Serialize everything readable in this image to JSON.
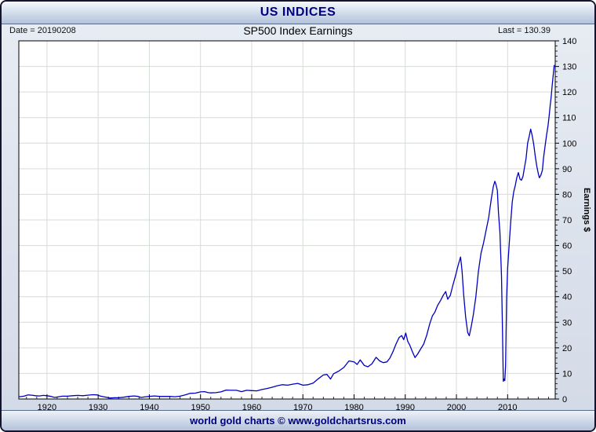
{
  "window": {
    "title": "US INDICES"
  },
  "header": {
    "date_label": "Date = 20190208",
    "chart_title": "SP500 Index Earnings",
    "last_label": "Last = 130.39"
  },
  "footer": {
    "credit": "world gold charts © www.goldchartsrus.com"
  },
  "colors": {
    "series_line": "#0000bf",
    "grid": "#d6dcd6",
    "plot_border": "#000000",
    "title_text": "#000080",
    "tick_text": "#000000"
  },
  "chart_data": {
    "type": "line",
    "title": "SP500 Index Earnings",
    "date": "20190208",
    "last_value": 130.39,
    "xlabel": "",
    "ylabel": "Earnings $",
    "xlim": [
      1914.5,
      2019.3
    ],
    "ylim": [
      0,
      140
    ],
    "x_ticks": [
      1920,
      1930,
      1940,
      1950,
      1960,
      1970,
      1980,
      1990,
      2000,
      2010
    ],
    "y_ticks": [
      0,
      10,
      20,
      30,
      40,
      50,
      60,
      70,
      80,
      90,
      100,
      110,
      120,
      130,
      140
    ],
    "grid": true,
    "legend_position": "none",
    "series": [
      {
        "name": "SP500 Index Earnings",
        "points": [
          [
            1914.6,
            0.9
          ],
          [
            1915.5,
            1.1
          ],
          [
            1916.3,
            1.6
          ],
          [
            1917,
            1.5
          ],
          [
            1917.8,
            1.3
          ],
          [
            1918.5,
            1.2
          ],
          [
            1919.3,
            1.4
          ],
          [
            1920,
            1.3
          ],
          [
            1920.8,
            1.0
          ],
          [
            1921.5,
            0.6
          ],
          [
            1922.3,
            0.9
          ],
          [
            1923,
            1.1
          ],
          [
            1924,
            1.1
          ],
          [
            1925,
            1.3
          ],
          [
            1926,
            1.4
          ],
          [
            1927,
            1.3
          ],
          [
            1928,
            1.5
          ],
          [
            1929,
            1.7
          ],
          [
            1929.8,
            1.6
          ],
          [
            1930.5,
            1.1
          ],
          [
            1931.3,
            0.8
          ],
          [
            1932.3,
            0.4
          ],
          [
            1933.2,
            0.5
          ],
          [
            1934,
            0.5
          ],
          [
            1935,
            0.7
          ],
          [
            1936,
            1.0
          ],
          [
            1937,
            1.2
          ],
          [
            1937.8,
            1.0
          ],
          [
            1938.4,
            0.6
          ],
          [
            1939,
            0.8
          ],
          [
            1940,
            1.0
          ],
          [
            1941,
            1.2
          ],
          [
            1942,
            1.0
          ],
          [
            1943,
            1.0
          ],
          [
            1944,
            1.0
          ],
          [
            1945,
            0.9
          ],
          [
            1946,
            1.1
          ],
          [
            1947,
            1.6
          ],
          [
            1948,
            2.2
          ],
          [
            1949,
            2.3
          ],
          [
            1950,
            2.8
          ],
          [
            1950.8,
            2.9
          ],
          [
            1951.5,
            2.5
          ],
          [
            1952,
            2.4
          ],
          [
            1953,
            2.5
          ],
          [
            1954,
            2.8
          ],
          [
            1955,
            3.5
          ],
          [
            1956,
            3.4
          ],
          [
            1957,
            3.4
          ],
          [
            1958,
            2.9
          ],
          [
            1959,
            3.4
          ],
          [
            1960,
            3.3
          ],
          [
            1961,
            3.2
          ],
          [
            1962,
            3.7
          ],
          [
            1963,
            4.1
          ],
          [
            1964,
            4.6
          ],
          [
            1965,
            5.2
          ],
          [
            1966,
            5.6
          ],
          [
            1967,
            5.4
          ],
          [
            1968,
            5.8
          ],
          [
            1969,
            6.1
          ],
          [
            1970,
            5.4
          ],
          [
            1971,
            5.6
          ],
          [
            1972,
            6.2
          ],
          [
            1973,
            7.9
          ],
          [
            1974,
            9.4
          ],
          [
            1974.7,
            9.6
          ],
          [
            1975.4,
            7.8
          ],
          [
            1976,
            9.9
          ],
          [
            1977,
            10.9
          ],
          [
            1978,
            12.3
          ],
          [
            1979,
            14.9
          ],
          [
            1980,
            14.5
          ],
          [
            1980.6,
            13.5
          ],
          [
            1981.2,
            15.3
          ],
          [
            1982,
            13.1
          ],
          [
            1982.7,
            12.6
          ],
          [
            1983.5,
            13.8
          ],
          [
            1984.3,
            16.3
          ],
          [
            1985,
            14.9
          ],
          [
            1985.7,
            14.2
          ],
          [
            1986.4,
            14.5
          ],
          [
            1987,
            16.0
          ],
          [
            1987.6,
            18.5
          ],
          [
            1988.2,
            21.5
          ],
          [
            1988.8,
            24.0
          ],
          [
            1989.3,
            24.8
          ],
          [
            1989.7,
            23.2
          ],
          [
            1990.1,
            25.8
          ],
          [
            1990.5,
            22.5
          ],
          [
            1990.9,
            21.0
          ],
          [
            1991.4,
            18.5
          ],
          [
            1991.9,
            16.2
          ],
          [
            1992.4,
            17.5
          ],
          [
            1993,
            19.5
          ],
          [
            1993.6,
            21.5
          ],
          [
            1994.2,
            25.0
          ],
          [
            1994.8,
            29.5
          ],
          [
            1995.3,
            32.5
          ],
          [
            1995.8,
            34.0
          ],
          [
            1996.3,
            36.5
          ],
          [
            1996.9,
            38.5
          ],
          [
            1997.4,
            40.5
          ],
          [
            1997.9,
            42.0
          ],
          [
            1998.3,
            39.0
          ],
          [
            1998.8,
            40.5
          ],
          [
            1999.3,
            44.5
          ],
          [
            1999.8,
            48.0
          ],
          [
            2000.3,
            52.0
          ],
          [
            2000.8,
            55.5
          ],
          [
            2001.1,
            50.0
          ],
          [
            2001.4,
            41.0
          ],
          [
            2001.8,
            32.0
          ],
          [
            2002.2,
            26.0
          ],
          [
            2002.5,
            24.7
          ],
          [
            2002.9,
            28.5
          ],
          [
            2003.3,
            33.0
          ],
          [
            2003.8,
            40.0
          ],
          [
            2004.3,
            50.0
          ],
          [
            2004.8,
            57.0
          ],
          [
            2005.3,
            61.0
          ],
          [
            2005.8,
            66.0
          ],
          [
            2006.3,
            71.0
          ],
          [
            2006.8,
            78.0
          ],
          [
            2007.2,
            83.0
          ],
          [
            2007.5,
            85.1
          ],
          [
            2007.7,
            84.0
          ],
          [
            2008,
            81.5
          ],
          [
            2008.2,
            73.0
          ],
          [
            2008.5,
            65.0
          ],
          [
            2008.8,
            48.0
          ],
          [
            2009.0,
            26.0
          ],
          [
            2009.15,
            6.9
          ],
          [
            2009.3,
            7.8
          ],
          [
            2009.45,
            7.2
          ],
          [
            2009.6,
            13.0
          ],
          [
            2009.8,
            39.0
          ],
          [
            2010,
            51.0
          ],
          [
            2010.3,
            60.5
          ],
          [
            2010.6,
            69.0
          ],
          [
            2010.9,
            77.0
          ],
          [
            2011.2,
            81.0
          ],
          [
            2011.5,
            83.5
          ],
          [
            2011.8,
            86.5
          ],
          [
            2012.1,
            88.5
          ],
          [
            2012.4,
            86.0
          ],
          [
            2012.7,
            85.5
          ],
          [
            2013,
            87.0
          ],
          [
            2013.3,
            90.5
          ],
          [
            2013.6,
            94.0
          ],
          [
            2013.9,
            100.0
          ],
          [
            2014.2,
            102.5
          ],
          [
            2014.5,
            105.5
          ],
          [
            2014.8,
            103.0
          ],
          [
            2015.1,
            99.5
          ],
          [
            2015.4,
            95.0
          ],
          [
            2015.7,
            91.0
          ],
          [
            2016,
            88.0
          ],
          [
            2016.2,
            86.5
          ],
          [
            2016.5,
            87.5
          ],
          [
            2016.8,
            89.5
          ],
          [
            2017,
            94.0
          ],
          [
            2017.3,
            98.5
          ],
          [
            2017.6,
            103.0
          ],
          [
            2017.9,
            107.0
          ],
          [
            2018.1,
            110.5
          ],
          [
            2018.3,
            114.5
          ],
          [
            2018.5,
            118.0
          ],
          [
            2018.7,
            122.5
          ],
          [
            2018.9,
            126.5
          ],
          [
            2019.1,
            130.39
          ]
        ]
      }
    ]
  }
}
